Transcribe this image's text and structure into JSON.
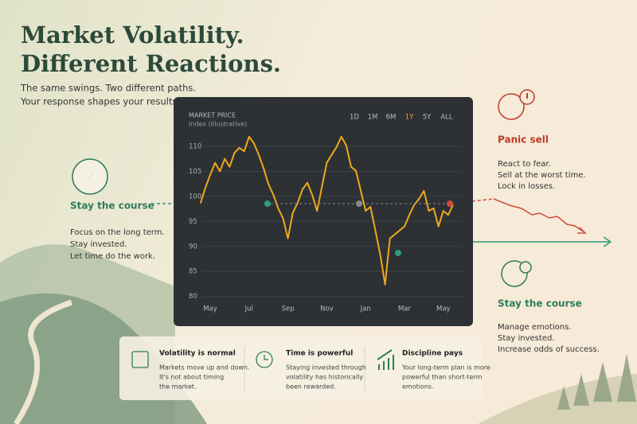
{
  "header": {
    "title": [
      "Market Volatility.",
      "Different Reactions."
    ],
    "subtitle": [
      "The same swings. Two different paths.",
      "Your response shapes your results."
    ]
  },
  "chart_data": {
    "type": "line",
    "title": "MARKET PRICE",
    "subtitle": "Index (Illustrative)",
    "ranges": [
      "1D",
      "1M",
      "6M",
      "1Y",
      "5Y",
      "ALL"
    ],
    "active_range": 3,
    "categories": [
      null,
      null,
      "May",
      null,
      null,
      null,
      null,
      null,
      null,
      null,
      "Jul",
      null,
      null,
      null,
      null,
      null,
      null,
      null,
      "Sep",
      null,
      null,
      null,
      null,
      null,
      null,
      null,
      "Nov",
      null,
      null,
      null,
      null,
      null,
      null,
      null,
      "Jan",
      null,
      null,
      null,
      null,
      null,
      null,
      null,
      "Mar",
      null,
      null,
      null,
      null,
      null,
      null,
      null,
      "May",
      null,
      null
    ],
    "values": [
      98.6,
      101.7,
      104.3,
      106.7,
      105,
      107.5,
      105.9,
      108.7,
      109.7,
      109,
      111.9,
      110.6,
      108.3,
      105.6,
      102.4,
      100.3,
      97.6,
      95.6,
      91.6,
      96.7,
      98.7,
      101.4,
      102.7,
      100.3,
      97.1,
      101.9,
      106.7,
      108.3,
      109.8,
      111.9,
      110.2,
      105.9,
      105.1,
      101.1,
      97.1,
      97.9,
      93.2,
      88.4,
      82.4,
      91.6,
      92.4,
      93.2,
      94,
      96.3,
      98.3,
      99.5,
      101.1,
      97.1,
      97.6,
      94,
      97.1,
      96.3,
      98.3
    ],
    "color": "#f0a81c",
    "ylim": [
      79,
      113
    ],
    "yticks": [
      80,
      85,
      90,
      95,
      100,
      105,
      110
    ],
    "grid": true
  },
  "left": {
    "title": "Stay the course",
    "lines": [
      "Focus on the long term.",
      "Stay invested.",
      "Let time do the work."
    ]
  },
  "panic": {
    "title": "Panic sell",
    "lines": [
      "React to fear.",
      "Sell at the worst time.",
      "Lock in losses."
    ]
  },
  "stay": {
    "title": "Stay the course",
    "lines": [
      "Manage emotions.",
      "Stay invested.",
      "Increase odds of success."
    ]
  },
  "cards": [
    {
      "title": "Volatility is normal",
      "lines": [
        "Markets move up and down.",
        "It's not about timing",
        "the market."
      ]
    },
    {
      "title": "Time is powerful",
      "lines": [
        "Staying invested through",
        "volatility has historically",
        "been rewarded."
      ]
    },
    {
      "title": "Discipline pays",
      "lines": [
        "Your long-term plan is more",
        "powerful than short-term",
        "emotions."
      ]
    }
  ]
}
